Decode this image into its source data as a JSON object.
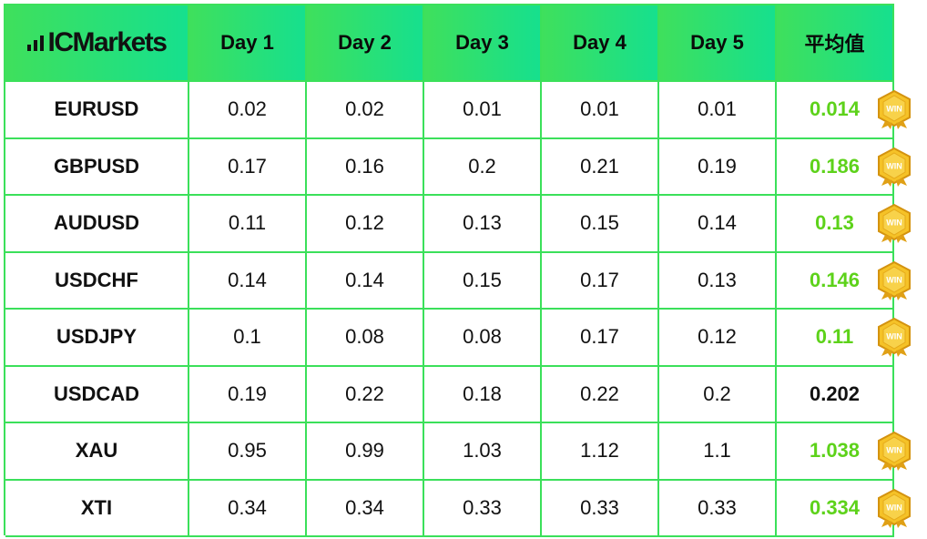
{
  "brand": {
    "logo_text": "ICMarkets"
  },
  "chart_data": {
    "type": "table",
    "columns": [
      "Day 1",
      "Day 2",
      "Day 3",
      "Day 4",
      "Day 5",
      "平均值"
    ],
    "rows": [
      {
        "symbol": "EURUSD",
        "values": [
          "0.02",
          "0.02",
          "0.01",
          "0.01",
          "0.01"
        ],
        "average": "0.014",
        "win": true
      },
      {
        "symbol": "GBPUSD",
        "values": [
          "0.17",
          "0.16",
          "0.2",
          "0.21",
          "0.19"
        ],
        "average": "0.186",
        "win": true
      },
      {
        "symbol": "AUDUSD",
        "values": [
          "0.11",
          "0.12",
          "0.13",
          "0.15",
          "0.14"
        ],
        "average": "0.13",
        "win": true
      },
      {
        "symbol": "USDCHF",
        "values": [
          "0.14",
          "0.14",
          "0.15",
          "0.17",
          "0.13"
        ],
        "average": "0.146",
        "win": true
      },
      {
        "symbol": "USDJPY",
        "values": [
          "0.1",
          "0.08",
          "0.08",
          "0.17",
          "0.12"
        ],
        "average": "0.11",
        "win": true
      },
      {
        "symbol": "USDCAD",
        "values": [
          "0.19",
          "0.22",
          "0.18",
          "0.22",
          "0.2"
        ],
        "average": "0.202",
        "win": false
      },
      {
        "symbol": "XAU",
        "values": [
          "0.95",
          "0.99",
          "1.03",
          "1.12",
          "1.1"
        ],
        "average": "1.038",
        "win": true
      },
      {
        "symbol": "XTI",
        "values": [
          "0.34",
          "0.34",
          "0.33",
          "0.33",
          "0.33"
        ],
        "average": "0.334",
        "win": true
      }
    ]
  },
  "badge": {
    "text": "WIN"
  },
  "colors": {
    "grid": "#3be05a",
    "header_start": "#3fe05c",
    "header_end": "#16e08e",
    "win_average": "#5dd21a",
    "badge_gold": "#f2b51c"
  }
}
